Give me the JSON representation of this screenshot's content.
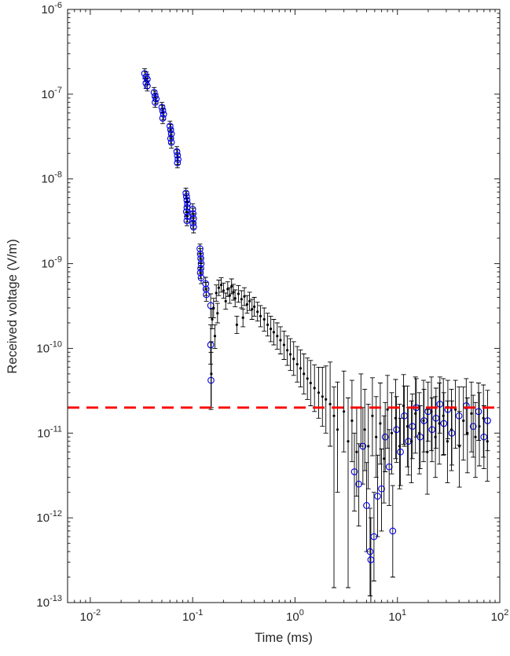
{
  "chart_data": {
    "type": "scatter",
    "error_bars": true,
    "title": "",
    "xlabel": "Time (ms)",
    "ylabel": "Received voltage (V/m)",
    "x_scale": "log",
    "y_scale": "log",
    "xlim": [
      0.006,
      100
    ],
    "ylim": [
      1e-13,
      1e-06
    ],
    "x_tick_exponents": [
      -2,
      -1,
      0,
      1,
      2
    ],
    "y_tick_exponents": [
      -13,
      -12,
      -11,
      -10,
      -9,
      -8,
      -7,
      -6
    ],
    "grid": false,
    "legend": "none",
    "axis_color": "#262626",
    "background_color": "#ffffff",
    "threshold_line": {
      "y": 2e-11,
      "color": "#ff0000",
      "style": "dashed",
      "width": 2.8
    },
    "series": [
      {
        "name": "blue-circles",
        "marker": "circle",
        "marker_color": "#0000ee",
        "bar_color": "#000000",
        "points": [
          [
            0.034,
            1.75e-07,
            1.52e-07,
            2e-07
          ],
          [
            0.035,
            1.6e-07,
            1.4e-07,
            1.83e-07
          ],
          [
            0.036,
            1.5e-07,
            1.3e-07,
            1.72e-07
          ],
          [
            0.035,
            1.35e-07,
            1.17e-07,
            1.55e-07
          ],
          [
            0.036,
            1.25e-07,
            1.09e-07,
            1.44e-07
          ],
          [
            0.042,
            1.05e-07,
            9.1e-08,
            1.2e-07
          ],
          [
            0.043,
            9.5e-08,
            8.3e-08,
            1.09e-07
          ],
          [
            0.044,
            8.8e-08,
            7.7e-08,
            1.01e-07
          ],
          [
            0.043,
            8e-08,
            7e-08,
            9.2e-08
          ],
          [
            0.05,
            7e-08,
            6.1e-08,
            8e-08
          ],
          [
            0.051,
            6.4e-08,
            5.6e-08,
            7.4e-08
          ],
          [
            0.052,
            5.8e-08,
            5e-08,
            6.7e-08
          ],
          [
            0.051,
            5.2e-08,
            4.5e-08,
            6e-08
          ],
          [
            0.06,
            4.2e-08,
            3.7e-08,
            4.8e-08
          ],
          [
            0.061,
            3.8e-08,
            3.3e-08,
            4.4e-08
          ],
          [
            0.062,
            3.4e-08,
            3e-08,
            3.9e-08
          ],
          [
            0.061,
            3e-08,
            2.6e-08,
            3.5e-08
          ],
          [
            0.062,
            2.7e-08,
            2.3e-08,
            3.1e-08
          ],
          [
            0.07,
            2.1e-08,
            1.8e-08,
            2.4e-08
          ],
          [
            0.071,
            1.9e-08,
            1.65e-08,
            2.2e-08
          ],
          [
            0.072,
            1.7e-08,
            1.48e-08,
            1.96e-08
          ],
          [
            0.071,
            1.55e-08,
            1.35e-08,
            1.78e-08
          ],
          [
            0.086,
            6.8e-09,
            5.9e-09,
            7.8e-09
          ],
          [
            0.087,
            6.2e-09,
            5.4e-09,
            7.1e-09
          ],
          [
            0.088,
            5.6e-09,
            4.9e-09,
            6.4e-09
          ],
          [
            0.089,
            5.1e-09,
            4.4e-09,
            5.9e-09
          ],
          [
            0.088,
            4.6e-09,
            4e-09,
            5.3e-09
          ],
          [
            0.087,
            4.1e-09,
            3.6e-09,
            4.7e-09
          ],
          [
            0.089,
            3.6e-09,
            3.1e-09,
            4.1e-09
          ],
          [
            0.088,
            3.2e-09,
            2.8e-09,
            3.7e-09
          ],
          [
            0.1,
            4.4e-09,
            3.8e-09,
            5.1e-09
          ],
          [
            0.101,
            3.9e-09,
            3.4e-09,
            4.5e-09
          ],
          [
            0.102,
            3.4e-09,
            3e-09,
            3.9e-09
          ],
          [
            0.101,
            3e-09,
            2.6e-09,
            3.5e-09
          ],
          [
            0.102,
            2.7e-09,
            2.3e-09,
            3.1e-09
          ],
          [
            0.118,
            1.5e-09,
            1.3e-09,
            1.7e-09
          ],
          [
            0.119,
            1.3e-09,
            1.12e-09,
            1.5e-09
          ],
          [
            0.12,
            1.15e-09,
            1e-09,
            1.33e-09
          ],
          [
            0.121,
            1e-09,
            8.6e-10,
            1.16e-09
          ],
          [
            0.12,
            8.8e-10,
            7.6e-10,
            1.02e-09
          ],
          [
            0.119,
            7.8e-10,
            6.7e-10,
            9e-10
          ],
          [
            0.121,
            6.8e-10,
            5.8e-10,
            7.9e-10
          ],
          [
            0.134,
            5.8e-10,
            4.9e-10,
            6.9e-10
          ],
          [
            0.135,
            5e-10,
            4.2e-10,
            6e-10
          ],
          [
            0.136,
            4.3e-10,
            3.6e-10,
            5.1e-10
          ],
          [
            0.15,
            3.2e-10,
            2.3e-10,
            4.4e-10
          ],
          [
            0.15,
            1.1e-10,
            6.5e-11,
            1.9e-10
          ],
          [
            0.151,
            4.2e-11,
            1.9e-11,
            9e-11
          ],
          [
            3.8,
            3.5e-12,
            1.2e-12,
            1e-11
          ],
          [
            4.2,
            2.5e-12,
            8e-13,
            7.5e-12
          ],
          [
            4.6,
            7e-12,
            2.5e-12,
            2e-11
          ],
          [
            5.0,
            1.4e-12,
            4e-13,
            4.5e-12
          ],
          [
            5.4,
            4e-13,
            1.2e-13,
            1.3e-12
          ],
          [
            5.5,
            3.2e-13,
            1e-13,
            1e-12
          ],
          [
            5.9,
            6e-13,
            1.8e-13,
            2e-12
          ],
          [
            6.4,
            1.8e-12,
            6e-13,
            5.5e-12
          ],
          [
            7.0,
            2.2e-12,
            7e-13,
            6.5e-12
          ],
          [
            7.6,
            9e-12,
            3.5e-12,
            2.3e-11
          ],
          [
            8.3,
            4e-12,
            1.4e-12,
            1.1e-11
          ],
          [
            9.0,
            7e-13,
            2e-13,
            2.4e-12
          ],
          [
            9.8,
            1.1e-11,
            4.5e-12,
            2.7e-11
          ],
          [
            10.7,
            6e-12,
            2.4e-12,
            1.5e-11
          ],
          [
            11.7,
            1.6e-11,
            7e-12,
            3.6e-11
          ],
          [
            12.8,
            8e-12,
            3.2e-12,
            2e-11
          ],
          [
            14.0,
            1.2e-11,
            5e-12,
            2.9e-11
          ],
          [
            15.3,
            2e-11,
            9e-12,
            4.4e-11
          ],
          [
            16.7,
            9e-12,
            3.8e-12,
            2.1e-11
          ],
          [
            18.2,
            1.4e-11,
            6e-12,
            3.3e-11
          ],
          [
            19.9,
            1.8e-11,
            8e-12,
            4e-11
          ],
          [
            21.8,
            1.1e-11,
            4.6e-12,
            2.6e-11
          ],
          [
            23.8,
            1.5e-11,
            6.6e-12,
            3.4e-11
          ],
          [
            26.0,
            2.2e-11,
            1e-11,
            4.6e-11
          ],
          [
            28.4,
            1.3e-11,
            5.6e-12,
            3e-11
          ],
          [
            31.1,
            1.9e-11,
            8.6e-12,
            4.2e-11
          ],
          [
            34.0,
            1e-11,
            4.2e-12,
            2.4e-11
          ],
          [
            40.0,
            1.6e-11,
            7.2e-12,
            3.5e-11
          ],
          [
            47.0,
            2.1e-11,
            9.6e-12,
            4.4e-11
          ],
          [
            55.0,
            1.2e-11,
            5.2e-12,
            2.8e-11
          ],
          [
            62.0,
            1.8e-11,
            8.2e-12,
            3.9e-11
          ],
          [
            70.0,
            9e-12,
            3.8e-12,
            2.1e-11
          ],
          [
            76.0,
            1.4e-11,
            6.2e-12,
            3.2e-11
          ]
        ]
      },
      {
        "name": "black-dots",
        "marker": "dot",
        "marker_color": "#000000",
        "bar_color": "#000000",
        "points": [
          [
            0.152,
            5e-11,
            2e-11,
            1.2e-10
          ],
          [
            0.155,
            2.2e-10,
            1.7e-10,
            2.9e-10
          ],
          [
            0.16,
            3e-10,
            2.3e-10,
            3.9e-10
          ],
          [
            0.165,
            1.4e-10,
            1e-10,
            1.9e-10
          ],
          [
            0.17,
            4.5e-10,
            3.6e-10,
            5.6e-10
          ],
          [
            0.175,
            2.6e-10,
            2e-10,
            3.4e-10
          ],
          [
            0.18,
            5.2e-10,
            4.2e-10,
            6.4e-10
          ],
          [
            0.19,
            5.6e-10,
            4.6e-10,
            6.8e-10
          ],
          [
            0.2,
            4.8e-10,
            3.9e-10,
            5.9e-10
          ],
          [
            0.21,
            3.6e-10,
            2.9e-10,
            4.5e-10
          ],
          [
            0.22,
            5e-10,
            4.1e-10,
            6.1e-10
          ],
          [
            0.23,
            4.2e-10,
            3.4e-10,
            5.2e-10
          ],
          [
            0.24,
            5.4e-10,
            4.4e-10,
            6.6e-10
          ],
          [
            0.25,
            4.6e-10,
            3.7e-10,
            5.7e-10
          ],
          [
            0.26,
            3.9e-10,
            3.1e-10,
            4.9e-10
          ],
          [
            0.27,
            1.9e-10,
            1.5e-10,
            2.4e-10
          ],
          [
            0.28,
            4.4e-10,
            3.5e-10,
            5.5e-10
          ],
          [
            0.3,
            3.8e-10,
            3e-10,
            4.8e-10
          ],
          [
            0.31,
            2.3e-10,
            1.8e-10,
            2.9e-10
          ],
          [
            0.32,
            4.1e-10,
            3.2e-10,
            5.2e-10
          ],
          [
            0.34,
            3.3e-10,
            2.6e-10,
            4.2e-10
          ],
          [
            0.36,
            3.6e-10,
            2.8e-10,
            4.6e-10
          ],
          [
            0.38,
            2.9e-10,
            2.2e-10,
            3.8e-10
          ],
          [
            0.4,
            3.1e-10,
            2.4e-10,
            4e-10
          ],
          [
            0.43,
            2.7e-10,
            2.1e-10,
            3.5e-10
          ],
          [
            0.46,
            2.4e-10,
            1.8e-10,
            3.2e-10
          ],
          [
            0.5,
            2.2e-10,
            1.6e-10,
            3e-10
          ],
          [
            0.54,
            1.9e-10,
            1.4e-10,
            2.6e-10
          ],
          [
            0.58,
            1.7e-10,
            1.2e-10,
            2.4e-10
          ],
          [
            0.62,
            1.55e-10,
            1.1e-10,
            2.2e-10
          ],
          [
            0.67,
            1.4e-10,
            9.8e-11,
            2e-10
          ],
          [
            0.72,
            1.25e-10,
            8.6e-11,
            1.8e-10
          ],
          [
            0.78,
            1.1e-10,
            7.4e-11,
            1.6e-10
          ],
          [
            0.84,
            9.5e-11,
            6.3e-11,
            1.4e-10
          ],
          [
            0.9,
            8.5e-11,
            5.5e-11,
            1.3e-10
          ],
          [
            0.97,
            7.5e-11,
            4.8e-11,
            1.2e-10
          ],
          [
            1.05,
            6.5e-11,
            4e-11,
            1.05e-10
          ],
          [
            1.13,
            5.8e-11,
            3.5e-11,
            9.6e-11
          ],
          [
            1.22,
            5e-11,
            2.9e-11,
            8.6e-11
          ],
          [
            1.32,
            4.4e-11,
            2.5e-11,
            7.7e-11
          ],
          [
            1.42,
            3.9e-11,
            2.1e-11,
            7.2e-11
          ],
          [
            1.55,
            3.4e-11,
            1.8e-11,
            6.4e-11
          ],
          [
            1.7,
            3e-11,
            1.5e-11,
            6e-11
          ],
          [
            1.85,
            2.7e-11,
            1.2e-11,
            6e-11
          ],
          [
            2.0,
            2.5e-11,
            1e-11,
            6.2e-11
          ],
          [
            2.2,
            2.2e-11,
            7e-12,
            6.9e-11
          ],
          [
            2.4,
            1.6e-11,
            1.5e-13,
            3.5e-11
          ],
          [
            2.6,
            1.1e-11,
            2e-12,
            4e-11
          ],
          [
            3.0,
            1.8e-11,
            6e-12,
            5.4e-11
          ],
          [
            3.3,
            8e-12,
            1.5e-13,
            2.6e-11
          ],
          [
            3.6,
            1.4e-11,
            4.6e-12,
            4.2e-11
          ],
          [
            4.0,
            6e-12,
            1.8e-12,
            2e-11
          ],
          [
            4.4,
            2e-11,
            7e-12,
            5e-11
          ],
          [
            4.8,
            1.1e-11,
            3.6e-12,
            3.3e-11
          ],
          [
            5.2,
            7e-12,
            2.2e-12,
            2.2e-11
          ],
          [
            5.7,
            1.6e-11,
            5.4e-12,
            4.5e-11
          ],
          [
            6.2,
            9e-12,
            3e-12,
            2.7e-11
          ],
          [
            6.8,
            1.3e-11,
            4.3e-12,
            3.9e-11
          ],
          [
            7.4,
            5e-12,
            1.5e-12,
            1.6e-11
          ],
          [
            8.0,
            1.9e-11,
            6.6e-12,
            4.8e-11
          ],
          [
            8.8,
            1e-11,
            3.3e-12,
            3e-11
          ],
          [
            9.6,
            1.5e-11,
            5e-12,
            4.3e-11
          ],
          [
            10.5,
            7e-12,
            2.2e-12,
            2.2e-11
          ],
          [
            11.5,
            2.1e-11,
            7.4e-12,
            4.9e-11
          ],
          [
            12.5,
            1.2e-11,
            4e-12,
            3.6e-11
          ],
          [
            13.7,
            8e-12,
            2.6e-12,
            2.4e-11
          ],
          [
            15.0,
            1.7e-11,
            5.8e-12,
            4.6e-11
          ],
          [
            16.4,
            1e-11,
            3.3e-12,
            3e-11
          ],
          [
            18.0,
            1.4e-11,
            4.6e-12,
            4.2e-11
          ],
          [
            19.6,
            6e-12,
            1.9e-12,
            1.9e-11
          ],
          [
            21.5,
            1.8e-11,
            6.2e-12,
            4.6e-11
          ],
          [
            23.5,
            9e-12,
            3e-12,
            2.7e-11
          ],
          [
            25.7,
            1.3e-11,
            4.3e-12,
            3.9e-11
          ],
          [
            28.1,
            1.6e-11,
            5.5e-12,
            4.4e-11
          ],
          [
            30.8,
            8e-12,
            2.6e-12,
            2.4e-11
          ],
          [
            33.7,
            1.1e-11,
            3.6e-12,
            3.3e-11
          ],
          [
            36.9,
            1.9e-11,
            6.6e-12,
            4.2e-11
          ],
          [
            40.3,
            7e-12,
            2.3e-12,
            1.8e-11
          ],
          [
            44.1,
            1.4e-11,
            4.8e-12,
            3.5e-11
          ],
          [
            48.3,
            1e-11,
            3.4e-12,
            2.6e-11
          ],
          [
            52.8,
            1.7e-11,
            6e-12,
            4e-11
          ],
          [
            57.8,
            9e-12,
            3e-12,
            2.3e-11
          ],
          [
            63.2,
            1.2e-11,
            4.1e-12,
            3e-11
          ],
          [
            69.2,
            1.5e-11,
            5.2e-12,
            3.7e-11
          ],
          [
            75.7,
            8e-12,
            2.7e-12,
            2e-11
          ]
        ]
      }
    ]
  }
}
